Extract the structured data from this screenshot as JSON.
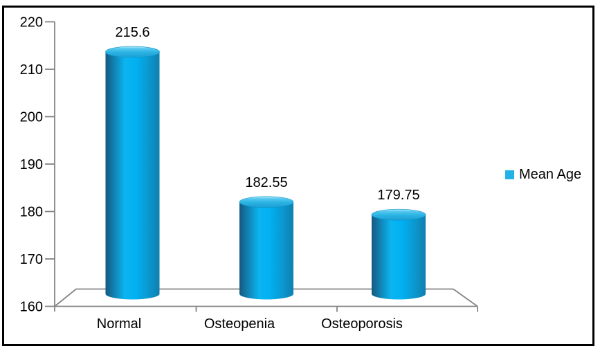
{
  "chart_data": {
    "type": "bar",
    "style": "3d-cylinder",
    "title": "",
    "xlabel": "",
    "ylabel": "",
    "categories": [
      "Normal",
      "Osteopenia",
      "Osteoporosis"
    ],
    "series": [
      {
        "name": "Mean Age",
        "values": [
          215.6,
          182.55,
          179.75
        ],
        "value_labels": [
          "215.6",
          "182.55",
          "179.75"
        ]
      }
    ],
    "ylim": [
      160,
      220
    ],
    "yticks": [
      160,
      170,
      180,
      190,
      200,
      210,
      220
    ],
    "grid": false,
    "legend": {
      "label": "Mean Age",
      "position": "right",
      "swatch_color": "#22B2E8"
    },
    "colors": {
      "background": "#FFFFFF",
      "border": "#000000",
      "axis_line": "#848484",
      "text": "#000000",
      "bar_primary": "#00AEEF",
      "bar_gradient": [
        [
          0,
          "#14587E"
        ],
        [
          0.1,
          "#1373A0"
        ],
        [
          0.36,
          "#0CB4F0"
        ],
        [
          0.56,
          "#01B1F2"
        ],
        [
          0.82,
          "#0C95CC"
        ],
        [
          1,
          "#0F7FAF"
        ]
      ],
      "bar_top_gradient": [
        [
          0,
          "#BFEFFB"
        ],
        [
          0.2,
          "#55C8EF"
        ],
        [
          0.55,
          "#2AB2E2"
        ],
        [
          1,
          "#1D9FD4"
        ]
      ]
    }
  }
}
